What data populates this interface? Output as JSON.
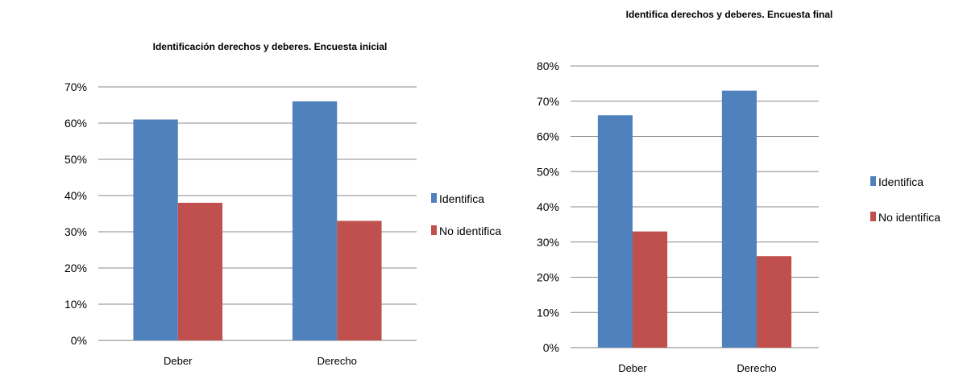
{
  "chart_data": [
    {
      "type": "bar",
      "title": "Identificación derechos y deberes. Encuesta inicial",
      "categories": [
        "Deber",
        "Derecho"
      ],
      "series": [
        {
          "name": "Identifica",
          "values": [
            61,
            66
          ],
          "color": "#4F81BD"
        },
        {
          "name": "No identifica",
          "values": [
            38,
            33
          ],
          "color": "#C0504D"
        }
      ],
      "ylim": [
        0,
        70
      ],
      "y_ticks": [
        "0%",
        "10%",
        "20%",
        "30%",
        "40%",
        "50%",
        "60%",
        "70%"
      ],
      "y_unit": "%",
      "grid": true,
      "legend": "right"
    },
    {
      "type": "bar",
      "title": "Identifica derechos y deberes. Encuesta final",
      "categories": [
        "Deber",
        "Derecho"
      ],
      "series": [
        {
          "name": "Identifica",
          "values": [
            66,
            73
          ],
          "color": "#4F81BD"
        },
        {
          "name": "No identifica",
          "values": [
            33,
            26
          ],
          "color": "#C0504D"
        }
      ],
      "ylim": [
        0,
        80
      ],
      "y_ticks": [
        "0%",
        "10%",
        "20%",
        "30%",
        "40%",
        "50%",
        "60%",
        "70%",
        "80%"
      ],
      "y_unit": "%",
      "grid": true,
      "legend": "right"
    }
  ]
}
